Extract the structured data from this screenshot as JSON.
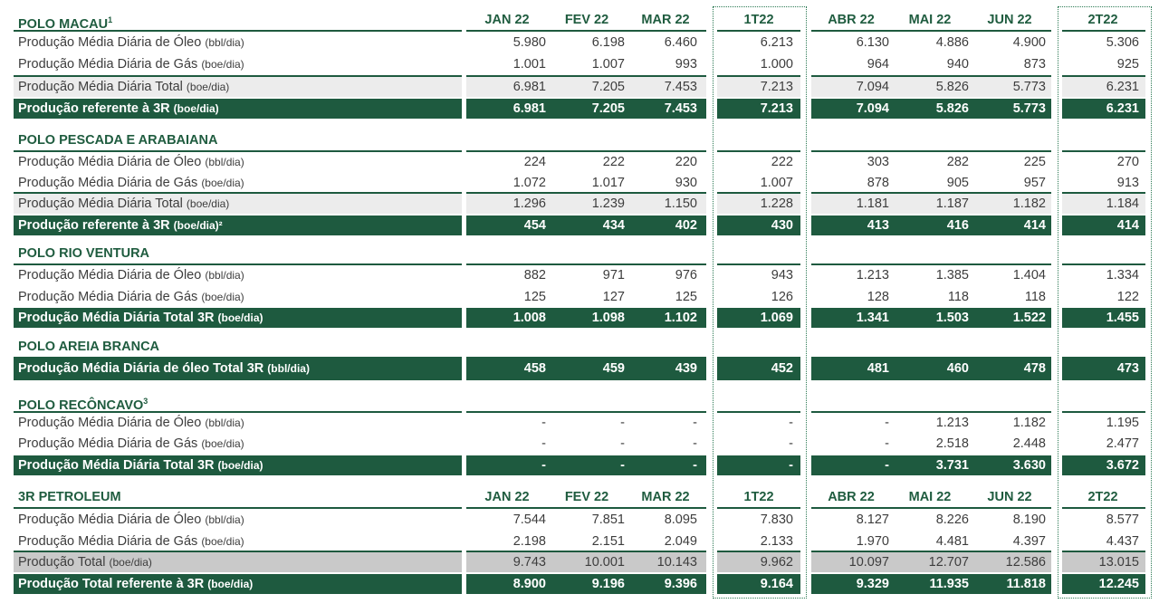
{
  "columns": [
    "JAN 22",
    "FEV 22",
    "MAR 22",
    "1T22",
    "ABR 22",
    "MAI 22",
    "JUN 22",
    "2T22"
  ],
  "sections": [
    {
      "title": "POLO MACAU",
      "title_sup": "1",
      "show_cols": true,
      "rows": [
        {
          "label": "Produção Média Diária de Óleo",
          "unit": "(bbl/dia)",
          "style": "plain",
          "values": [
            "5.980",
            "6.198",
            "6.460",
            "6.213",
            "6.130",
            "4.886",
            "4.900",
            "5.306"
          ]
        },
        {
          "label": "Produção Média Diária de Gás",
          "unit": "(boe/dia)",
          "style": "plain",
          "values": [
            "1.001",
            "1.007",
            "993",
            "1.000",
            "964",
            "940",
            "873",
            "925"
          ]
        },
        {
          "label": "Produção Média Diária  Total",
          "unit": "(boe/dia)",
          "style": "gray",
          "values": [
            "6.981",
            "7.205",
            "7.453",
            "7.213",
            "7.094",
            "5.826",
            "5.773",
            "6.231"
          ]
        },
        {
          "label": "Produção referente à 3R",
          "unit": "(boe/dia)",
          "style": "dark",
          "values": [
            "6.981",
            "7.205",
            "7.453",
            "7.213",
            "7.094",
            "5.826",
            "5.773",
            "6.231"
          ]
        }
      ]
    },
    {
      "title": "POLO PESCADA E ARABAIANA",
      "title_sup": "",
      "show_cols": false,
      "rows": [
        {
          "label": "Produção Média Diária de Óleo",
          "unit": "(bbl/dia)",
          "style": "plain",
          "values": [
            "224",
            "222",
            "220",
            "222",
            "303",
            "282",
            "225",
            "270"
          ]
        },
        {
          "label": "Produção Média Diária de Gás",
          "unit": "(boe/dia)",
          "style": "plain",
          "values": [
            "1.072",
            "1.017",
            "930",
            "1.007",
            "878",
            "905",
            "957",
            "913"
          ]
        },
        {
          "label": "Produção Média Diária Total",
          "unit": "(boe/dia)",
          "style": "gray",
          "values": [
            "1.296",
            "1.239",
            "1.150",
            "1.228",
            "1.181",
            "1.187",
            "1.182",
            "1.184"
          ]
        },
        {
          "label": "Produção referente à 3R",
          "unit": "(boe/dia)²",
          "style": "dark",
          "values": [
            "454",
            "434",
            "402",
            "430",
            "413",
            "416",
            "414",
            "414"
          ]
        }
      ]
    },
    {
      "title": "POLO RIO VENTURA",
      "title_sup": "",
      "show_cols": false,
      "rows": [
        {
          "label": "Produção Média Diária de Óleo",
          "unit": "(bbl/dia)",
          "style": "plain",
          "values": [
            "882",
            "971",
            "976",
            "943",
            "1.213",
            "1.385",
            "1.404",
            "1.334"
          ]
        },
        {
          "label": "Produção Média Diária de Gás",
          "unit": "(boe/dia)",
          "style": "plain",
          "values": [
            "125",
            "127",
            "125",
            "126",
            "128",
            "118",
            "118",
            "122"
          ]
        },
        {
          "label": "Produção Média Diária Total 3R",
          "unit": "(boe/dia)",
          "style": "dark",
          "values": [
            "1.008",
            "1.098",
            "1.102",
            "1.069",
            "1.341",
            "1.503",
            "1.522",
            "1.455"
          ]
        }
      ]
    },
    {
      "title": "POLO AREIA BRANCA",
      "title_sup": "",
      "show_cols": false,
      "rows": [
        {
          "label": "Produção Média Diária de óleo Total 3R",
          "unit": "(bbl/dia)",
          "style": "darktall",
          "values": [
            "458",
            "459",
            "439",
            "452",
            "481",
            "460",
            "478",
            "473"
          ]
        }
      ]
    },
    {
      "title": "POLO RECÔNCAVO",
      "title_sup": "3",
      "show_cols": false,
      "rows": [
        {
          "label": "Produção Média Diária de Óleo",
          "unit": "(bbl/dia)",
          "style": "plain",
          "values": [
            "-",
            "-",
            "-",
            "-",
            "-",
            "1.213",
            "1.182",
            "1.195"
          ]
        },
        {
          "label": "Produção Média Diária de Gás",
          "unit": "(boe/dia)",
          "style": "plain",
          "values": [
            "-",
            "-",
            "-",
            "-",
            "-",
            "2.518",
            "2.448",
            "2.477"
          ]
        },
        {
          "label": "Produção Média Diária Total 3R",
          "unit": "(boe/dia)",
          "style": "dark",
          "values": [
            "-",
            "-",
            "-",
            "-",
            "-",
            "3.731",
            "3.630",
            "3.672"
          ]
        }
      ]
    },
    {
      "title": "3R PETROLEUM",
      "title_sup": "",
      "show_cols": true,
      "rows": [
        {
          "label": "Produção Média Diária de Óleo",
          "unit": "(bbl/dia)",
          "style": "plain",
          "values": [
            "7.544",
            "7.851",
            "8.095",
            "7.830",
            "8.127",
            "8.226",
            "8.190",
            "8.577"
          ]
        },
        {
          "label": "Produção Média Diária de Gás",
          "unit": "(boe/dia)",
          "style": "plain",
          "values": [
            "2.198",
            "2.151",
            "2.049",
            "2.133",
            "1.970",
            "4.481",
            "4.397",
            "4.437"
          ]
        },
        {
          "label": "Produção Total",
          "unit": "(boe/dia)",
          "style": "graydark",
          "values": [
            "9.743",
            "10.001",
            "10.143",
            "9.962",
            "10.097",
            "12.707",
            "12.586",
            "13.015"
          ]
        },
        {
          "label": "Produção Total referente à 3R",
          "unit": "(boe/dia)",
          "style": "dark",
          "values": [
            "8.900",
            "9.196",
            "9.396",
            "9.164",
            "9.329",
            "11.935",
            "11.818",
            "12.245"
          ]
        }
      ]
    }
  ]
}
